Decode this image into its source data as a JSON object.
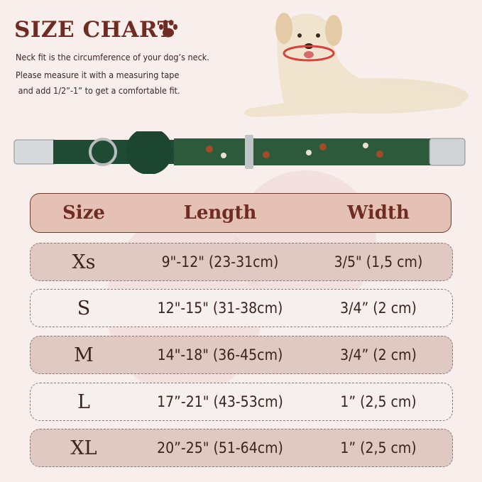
{
  "title": "SIZE CHART",
  "description": [
    "Neck fit is the circumference of your dog’s neck.",
    "Please measure it with a measuring tape",
    " and add 1/2”-1” to get a comfortable fit."
  ],
  "colors": {
    "title": "#6e2c22",
    "header_bg": "#e5c0b4",
    "row_dark": "#dfc9c2",
    "row_light": "#f7efed",
    "background": "#f8eeec"
  },
  "table": {
    "headers": [
      "Size",
      "Length",
      "Width"
    ],
    "rows": [
      [
        "Xs",
        "9\"-12\" (23-31cm)",
        "3/5\" (1,5 cm)"
      ],
      [
        "S",
        "12\"-15\" (31-38cm)",
        "3/4” (2 cm)"
      ],
      [
        "M",
        "14\"-18\" (36-45cm)",
        "3/4” (2 cm)"
      ],
      [
        "L",
        "17”-21\" (43-53cm)",
        "1”  (2,5 cm)"
      ],
      [
        "XL",
        "20”-25\" (51-64cm)",
        "1”  (2,5 cm)"
      ]
    ]
  }
}
